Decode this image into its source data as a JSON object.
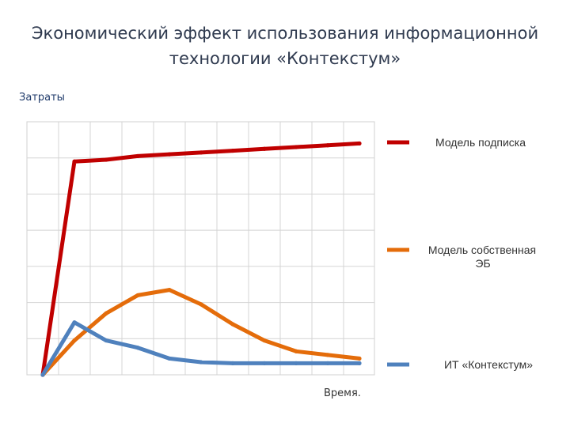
{
  "chart_data": {
    "type": "line",
    "title": "Экономический эффект использования информационной технологии «Контекстум»",
    "title_lines": [
      "Экономический эффект использования информационной",
      "технологии «Контекстум»"
    ],
    "ylabel": "Затраты",
    "xlabel": "Время.",
    "xlim": [
      0,
      11
    ],
    "ylim": [
      0,
      7
    ],
    "grid": true,
    "legend_position": "right",
    "series": [
      {
        "name": "Модель подписка",
        "name_lines": [
          "Модель подписка"
        ],
        "color": "#c00000",
        "x": [
          0,
          1,
          2,
          3,
          4,
          5,
          6,
          7,
          8,
          9,
          10
        ],
        "y": [
          0,
          5.9,
          5.95,
          6.05,
          6.1,
          6.15,
          6.2,
          6.25,
          6.3,
          6.35,
          6.4
        ]
      },
      {
        "name": "Модель собственная ЭБ",
        "name_lines": [
          "Модель собственная",
          "ЭБ"
        ],
        "color": "#e46c0a",
        "x": [
          0,
          1,
          2,
          3,
          4,
          5,
          6,
          7,
          8,
          9,
          10
        ],
        "y": [
          0,
          0.95,
          1.7,
          2.2,
          2.35,
          1.95,
          1.4,
          0.95,
          0.65,
          0.55,
          0.45
        ]
      },
      {
        "name": "ИТ «Контекстум»",
        "name_lines": [
          "ИТ «Контекстум»"
        ],
        "color": "#4f81bd",
        "x": [
          0,
          1,
          2,
          3,
          4,
          5,
          6,
          7,
          8,
          9,
          10
        ],
        "y": [
          0,
          1.45,
          0.95,
          0.75,
          0.45,
          0.35,
          0.32,
          0.32,
          0.32,
          0.32,
          0.32
        ]
      }
    ]
  }
}
